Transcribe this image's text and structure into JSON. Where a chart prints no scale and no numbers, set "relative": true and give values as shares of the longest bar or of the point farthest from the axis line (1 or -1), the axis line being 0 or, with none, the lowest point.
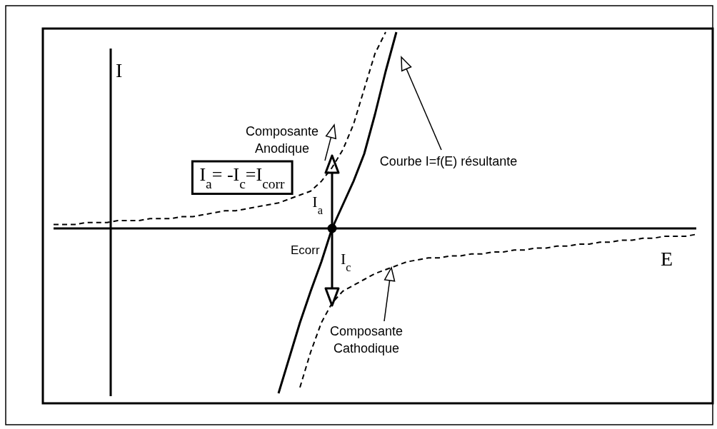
{
  "chart_data": {
    "type": "line",
    "relative": true,
    "xlabel": "E",
    "ylabel": "I",
    "categories": [
      null,
      null,
      null,
      null,
      null,
      null,
      null,
      null,
      null,
      null,
      null,
      null,
      null,
      null,
      null,
      null,
      null,
      null,
      null,
      null,
      null,
      null,
      null,
      null,
      null,
      null,
      null,
      null,
      null,
      null,
      null,
      null,
      null,
      null,
      null,
      null,
      null,
      null,
      null,
      null,
      null,
      null,
      null,
      null,
      null,
      null,
      null,
      null,
      null,
      null,
      null,
      null,
      null,
      null,
      null,
      null,
      null,
      null,
      null,
      null,
      null
    ],
    "series": [
      {
        "name": "Composante Anodique",
        "color": "#000000",
        "line_style": "dashed",
        "values": [
          0.02,
          0.02,
          0.02,
          0.03,
          0.03,
          0.03,
          0.04,
          0.04,
          0.04,
          0.05,
          0.05,
          0.05,
          0.06,
          0.06,
          0.07,
          0.08,
          0.09,
          0.09,
          0.1,
          0.11,
          0.12,
          0.13,
          0.15,
          0.17,
          0.19,
          0.24,
          0.31,
          0.4,
          0.53,
          0.71,
          0.89,
          1.0,
          null,
          null,
          null,
          null,
          null,
          null,
          null,
          null,
          null,
          null,
          null,
          null,
          null,
          null,
          null,
          null,
          null,
          null,
          null,
          null,
          null,
          null,
          null,
          null,
          null,
          null,
          null,
          null,
          null
        ]
      },
      {
        "name": "Courbe I=f(E) résultante",
        "color": "#000000",
        "line_style": "solid",
        "values": [
          null,
          null,
          null,
          null,
          null,
          null,
          null,
          null,
          null,
          null,
          null,
          null,
          null,
          null,
          null,
          null,
          null,
          null,
          null,
          null,
          null,
          -0.84,
          -0.66,
          -0.48,
          -0.32,
          -0.17,
          0,
          0.12,
          0.24,
          0.38,
          0.58,
          0.8,
          1.0,
          null,
          null,
          null,
          null,
          null,
          null,
          null,
          null,
          null,
          null,
          null,
          null,
          null,
          null,
          null,
          null,
          null,
          null,
          null,
          null,
          null,
          null,
          null,
          null,
          null,
          null,
          null,
          null
        ]
      },
      {
        "name": "Composante Cathodique",
        "color": "#000000",
        "line_style": "dashed",
        "values": [
          null,
          null,
          null,
          null,
          null,
          null,
          null,
          null,
          null,
          null,
          null,
          null,
          null,
          null,
          null,
          null,
          null,
          null,
          null,
          null,
          null,
          null,
          null,
          -0.81,
          -0.63,
          -0.48,
          -0.38,
          -0.32,
          -0.29,
          -0.26,
          -0.23,
          -0.21,
          -0.19,
          -0.17,
          -0.16,
          -0.15,
          -0.15,
          -0.14,
          -0.14,
          -0.13,
          -0.13,
          -0.12,
          -0.12,
          -0.11,
          -0.11,
          -0.1,
          -0.1,
          -0.09,
          -0.09,
          -0.08,
          -0.08,
          -0.07,
          -0.07,
          -0.06,
          -0.06,
          -0.05,
          -0.05,
          -0.04,
          -0.04,
          -0.04,
          -0.03
        ]
      }
    ],
    "annotations": [
      "I$_{a}$= -I$_{c}$=I$_{corr}$",
      "Ecorr",
      "I$_{a}$",
      "I$_{c}$"
    ]
  }
}
